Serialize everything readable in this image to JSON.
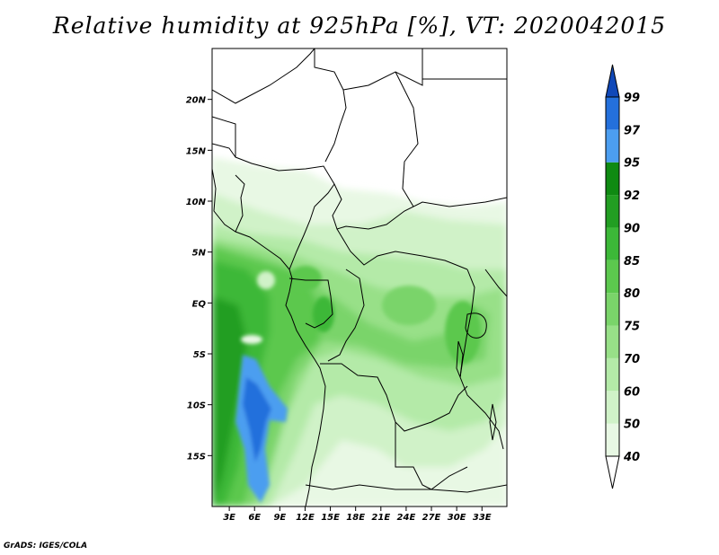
{
  "title": "Relative humidity at 925hPa [%], VT: 2020042015",
  "footer": "GrADS: IGES/COLA",
  "map": {
    "lon_range": [
      0,
      35
    ],
    "lat_range": [
      -20,
      25
    ],
    "lat_ticks": [
      {
        "value": 20,
        "label": "20N"
      },
      {
        "value": 15,
        "label": "15N"
      },
      {
        "value": 10,
        "label": "10N"
      },
      {
        "value": 5,
        "label": "5N"
      },
      {
        "value": 0,
        "label": "EQ"
      },
      {
        "value": -5,
        "label": "5S"
      },
      {
        "value": -10,
        "label": "10S"
      },
      {
        "value": -15,
        "label": "15S"
      }
    ],
    "lon_ticks": [
      {
        "value": 3,
        "label": "3E"
      },
      {
        "value": 6,
        "label": "6E"
      },
      {
        "value": 9,
        "label": "9E"
      },
      {
        "value": 12,
        "label": "12E"
      },
      {
        "value": 15,
        "label": "15E"
      },
      {
        "value": 18,
        "label": "18E"
      },
      {
        "value": 21,
        "label": "21E"
      },
      {
        "value": 24,
        "label": "24E"
      },
      {
        "value": 27,
        "label": "27E"
      },
      {
        "value": 30,
        "label": "30E"
      },
      {
        "value": 33,
        "label": "33E"
      }
    ]
  },
  "colorbar": {
    "levels": [
      "40",
      "50",
      "60",
      "70",
      "75",
      "80",
      "85",
      "90",
      "92",
      "95",
      "97",
      "99"
    ],
    "colors": [
      "#ffffff",
      "#e8f8e4",
      "#d0f2c8",
      "#b4eaa8",
      "#98e088",
      "#7ad46a",
      "#5cc84e",
      "#3cb838",
      "#229e22",
      "#0f8a12",
      "#4c9ef0",
      "#2470dc",
      "#1048b8"
    ]
  }
}
